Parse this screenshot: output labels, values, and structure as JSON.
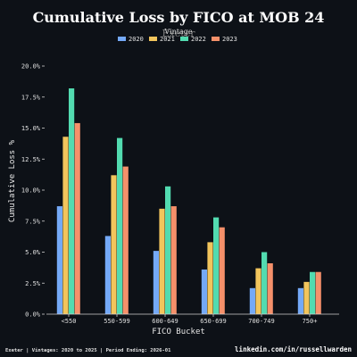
{
  "chart_data": {
    "type": "bar",
    "title": "Cumulative Loss by FICO at MOB 24",
    "subtitle": "Exeter",
    "xlabel": "FICO Bucket",
    "ylabel": "Cumulative Loss %",
    "ylim": [
      0,
      20
    ],
    "yticks": [
      "0.0%",
      "2.5%",
      "5.0%",
      "7.5%",
      "10.0%",
      "12.5%",
      "15.0%",
      "17.5%",
      "20.0%"
    ],
    "ytick_values": [
      0,
      2.5,
      5,
      7.5,
      10,
      12.5,
      15,
      17.5,
      20
    ],
    "categories": [
      "<550",
      "550-599",
      "600-649",
      "650-699",
      "700-749",
      "750+"
    ],
    "legend_title": "Vintage",
    "legend_position": "top-center",
    "series": [
      {
        "name": "2020",
        "color": "#74a9f7",
        "values": [
          8.7,
          6.3,
          5.1,
          3.6,
          2.1,
          2.1
        ]
      },
      {
        "name": "2021",
        "color": "#f2c55c",
        "values": [
          14.3,
          11.2,
          8.5,
          5.8,
          3.7,
          2.6
        ]
      },
      {
        "name": "2022",
        "color": "#52dbb0",
        "values": [
          18.2,
          14.2,
          10.3,
          7.8,
          5.0,
          3.4
        ]
      },
      {
        "name": "2023",
        "color": "#f5906a",
        "values": [
          15.4,
          11.9,
          8.7,
          7.0,
          4.1,
          3.4
        ]
      }
    ],
    "grid": false
  },
  "footer": {
    "left": "Exeter | Vintages: 2020 to 2025 | Period Ending: 2026-01",
    "right": "linkedin.com/in/russellwarden"
  }
}
